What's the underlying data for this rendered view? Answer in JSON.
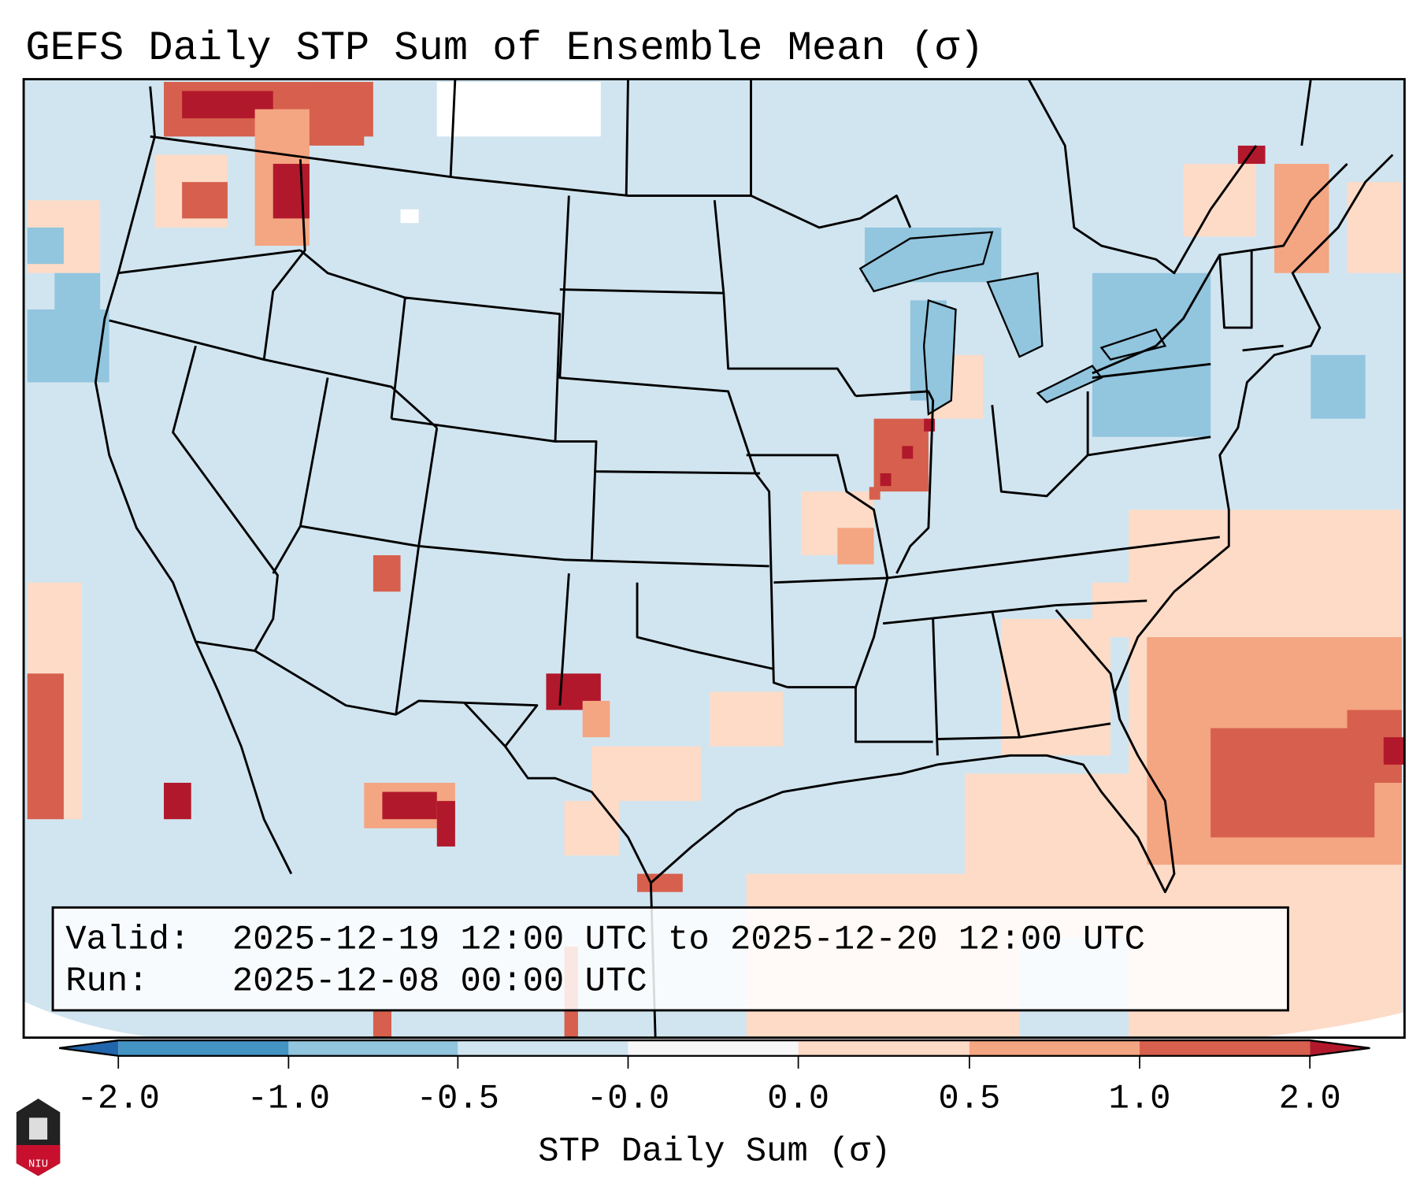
{
  "title": "GEFS Daily STP Sum of Ensemble Mean (σ)",
  "info_box": {
    "valid_label": "Valid:",
    "valid_value": "2025-12-19 12:00 UTC to 2025-12-20 12:00 UTC",
    "run_label": "Run:",
    "run_value": "2025-12-08 00:00 UTC"
  },
  "colorbar": {
    "label": "STP Daily Sum (σ)",
    "ticks": [
      "-2.0",
      "-1.0",
      "-0.5",
      "-0.0",
      "0.0",
      "0.5",
      "1.0",
      "2.0"
    ],
    "colors": [
      "#4393c3",
      "#92c5de",
      "#d1e5f0",
      "#f7f7f7",
      "#fddbc7",
      "#f4a582",
      "#d6604d"
    ],
    "under_color": "#2166ac",
    "over_color": "#b2182b"
  },
  "logo": {
    "text": "NIU"
  }
}
